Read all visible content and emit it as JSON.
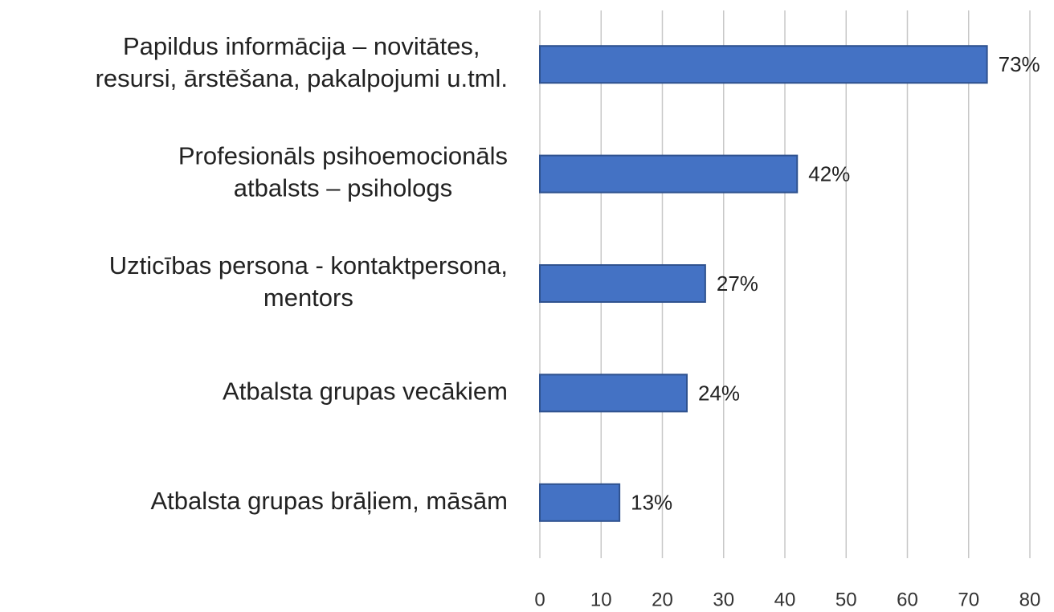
{
  "chart_data": {
    "type": "bar",
    "orientation": "horizontal",
    "categories": [
      "Papildus informācija – novitātes,\nresursi, ārstēšana, pakalpojumi u.tml.",
      "Profesionāls psihoemocionāls\natbalsts – psihologs",
      "Uzticības persona - kontaktpersona,\nmentors",
      "Atbalsta grupas vecākiem",
      "Atbalsta grupas brāļiem, māsām"
    ],
    "values": [
      73,
      42,
      27,
      24,
      13
    ],
    "value_labels": [
      "73%",
      "42%",
      "27%",
      "24%",
      "13%"
    ],
    "color": "#4472c4",
    "xlim": [
      0,
      80
    ],
    "xticks": [
      0,
      10,
      20,
      30,
      40,
      50,
      60,
      70,
      80
    ],
    "grid": true
  }
}
